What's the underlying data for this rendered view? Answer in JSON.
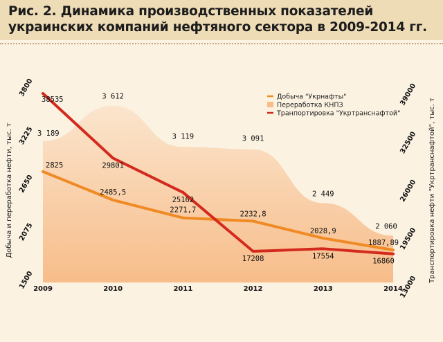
{
  "header": {
    "title": "Рис. 2. Динамика производственных показателей украинских компаний нефтяного сектора в 2009-2014 гг."
  },
  "colors": {
    "background": "#fbf2e2",
    "title_band": "#eedcb7",
    "area_top": "#fbe5cd",
    "area_bottom": "#f7bd8a",
    "line_ukrnafta": "#f08a24",
    "line_transport": "#d42a1e"
  },
  "chart_data": {
    "type": "line",
    "x": [
      "2009",
      "2010",
      "2011",
      "2012",
      "2013",
      "2014"
    ],
    "left_axis": {
      "label": "Добыча и переработка нефти, тыс. т",
      "range": [
        1500,
        3800
      ],
      "ticks": [
        "1500",
        "2075",
        "2650",
        "3225",
        "3800"
      ]
    },
    "right_axis": {
      "label": "Транспортировка нефти \"Укртранснафтой\", тыс. т",
      "range": [
        13000,
        39000
      ],
      "ticks": [
        "13000",
        "19500",
        "26000",
        "32500",
        "39000"
      ]
    },
    "series": [
      {
        "name": "Добыча \"Укрнафты\"",
        "chart": "line",
        "axis": "left",
        "color": "#f08a24",
        "values": [
          2825,
          2485.5,
          2271.7,
          2232.8,
          2028.9,
          1887.89
        ],
        "labels": [
          "2825",
          "2485,5",
          "2271,7",
          "2232,8",
          "2028,9",
          "1887,89"
        ]
      },
      {
        "name": "Переработка КНПЗ",
        "chart": "area",
        "axis": "left",
        "color": "#f7bd8a",
        "values": [
          3189,
          3612,
          3119,
          3091,
          2449,
          2060
        ],
        "labels": [
          "3 189",
          "3 612",
          "3 119",
          "3 091",
          "2 449",
          "2 060"
        ]
      },
      {
        "name": "Транпортировка \"Укртранснафтой\"",
        "chart": "line",
        "axis": "right",
        "color": "#d42a1e",
        "values": [
          38535,
          29801,
          25162,
          17208,
          17554,
          16860
        ],
        "labels": [
          "38535",
          "29801",
          "25162",
          "17208",
          "17554",
          "16860"
        ]
      }
    ],
    "legend_position": "top-right",
    "grid": false
  }
}
